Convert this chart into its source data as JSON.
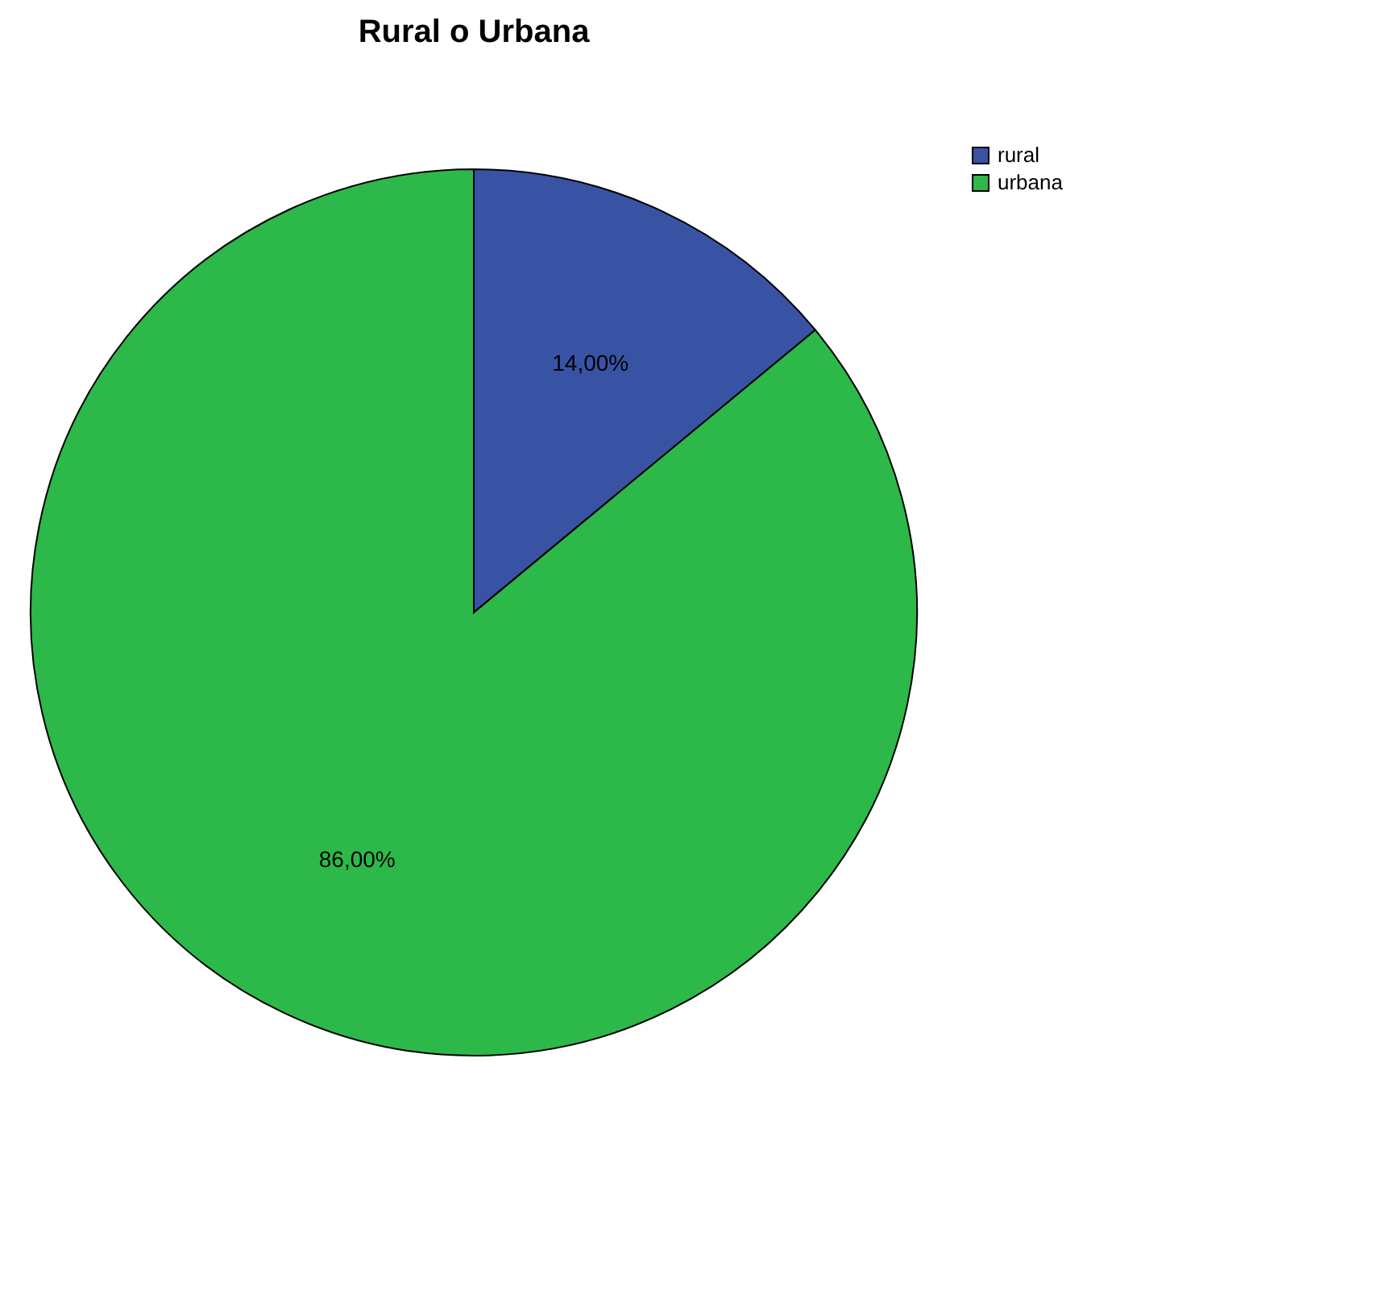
{
  "chart_data": {
    "type": "pie",
    "title": "Rural o Urbana",
    "categories": [
      "rural",
      "urbana"
    ],
    "values": [
      14,
      86
    ],
    "colors": [
      "#3953a4",
      "#2db84a"
    ],
    "value_labels": [
      "14,00%",
      "86,00%"
    ],
    "legend": "top right"
  }
}
